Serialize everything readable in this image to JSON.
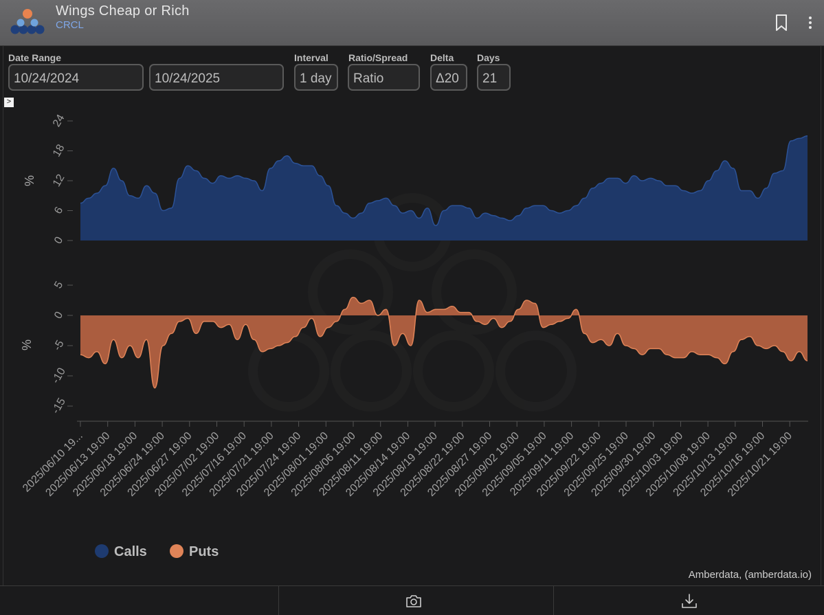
{
  "header": {
    "title": "Wings Cheap or Rich",
    "subtitle": "CRCL"
  },
  "controls": {
    "date_range_label": "Date Range",
    "start_date": "10/24/2024",
    "end_date": "10/24/2025",
    "interval_label": "Interval",
    "interval_value": "1 day",
    "ratio_label": "Ratio/Spread",
    "ratio_value": "Ratio",
    "delta_label": "Delta",
    "delta_value": "Δ20",
    "days_label": "Days",
    "days_value": "21"
  },
  "colors": {
    "calls": "#1e3b70",
    "calls_line": "#2c5296",
    "puts": "#b76342",
    "puts_line": "#e08458"
  },
  "chart_data": [
    {
      "type": "area",
      "name": "Calls",
      "ylabel": "%",
      "ylim": [
        0,
        24
      ],
      "yticks": [
        0,
        6,
        12,
        18,
        24
      ],
      "values": [
        7.5,
        8.5,
        9.5,
        11,
        14.5,
        12,
        9,
        8.5,
        11,
        9.5,
        6,
        6.5,
        12.5,
        15,
        14,
        12.5,
        11.5,
        13,
        12.5,
        13,
        12.5,
        12,
        10,
        14.5,
        16,
        17,
        15.5,
        15,
        15,
        13,
        11,
        7,
        5.5,
        4.5,
        5.5,
        7.5,
        8,
        8.5,
        7,
        5.5,
        6,
        4.5,
        6.5,
        3,
        6,
        7,
        7,
        6.5,
        4.5,
        5.5,
        5,
        4.5,
        4,
        5,
        6.5,
        7,
        7,
        6,
        5.5,
        6,
        7,
        8.5,
        10.5,
        11.5,
        12.5,
        12.5,
        11.5,
        13,
        12,
        12.5,
        12,
        11,
        11,
        10,
        9.5,
        10,
        12,
        14,
        16,
        14.5,
        10,
        10,
        8.5,
        10.5,
        13.5,
        14,
        20,
        20.5,
        21
      ]
    },
    {
      "type": "area",
      "name": "Puts",
      "ylabel": "%",
      "ylim": [
        -15,
        5
      ],
      "yticks": [
        5,
        0,
        -5,
        -10,
        -15
      ],
      "values": [
        -6.5,
        -7,
        -6,
        -8,
        -4,
        -7,
        -5,
        -7,
        -4,
        -12,
        -5,
        -3,
        -1,
        -0.5,
        -3,
        -1,
        -1,
        -2,
        -1.5,
        -4,
        -1.5,
        -4,
        -6,
        -5.5,
        -5,
        -4.5,
        -3.5,
        -2,
        -0.5,
        -3.5,
        -2,
        -1,
        1,
        3,
        2,
        2.5,
        0,
        1,
        -5,
        -3,
        -5,
        2.5,
        0.5,
        1,
        1,
        1.5,
        0.5,
        0.5,
        -1,
        -1.5,
        -0.5,
        -2,
        -1,
        1,
        2.5,
        2,
        -2,
        -1.5,
        -1,
        -0.5,
        1,
        -3,
        -4.5,
        -4,
        -5,
        -3,
        -5,
        -5.5,
        -6.5,
        -5.5,
        -5.5,
        -6.5,
        -7,
        -7,
        -6,
        -6.5,
        -6.5,
        -7,
        -8,
        -6,
        -4,
        -3.5,
        -5,
        -5.5,
        -5,
        -6,
        -7.5,
        -6,
        -7.5
      ]
    }
  ],
  "x_tick_labels": [
    "2025/06/10 19...",
    "2025/06/13 19:00",
    "2025/06/18 19:00",
    "2025/06/24 19:00",
    "2025/06/27 19:00",
    "2025/07/02 19:00",
    "2025/07/16 19:00",
    "2025/07/21 19:00",
    "2025/07/24 19:00",
    "2025/08/01 19:00",
    "2025/08/06 19:00",
    "2025/08/11 19:00",
    "2025/08/14 19:00",
    "2025/08/19 19:00",
    "2025/08/22 19:00",
    "2025/08/27 19:00",
    "2025/09/02 19:00",
    "2025/09/05 19:00",
    "2025/09/11 19:00",
    "2025/09/22 19:00",
    "2025/09/25 19:00",
    "2025/09/30 19:00",
    "2025/10/03 19:00",
    "2025/10/08 19:00",
    "2025/10/13 19:00",
    "2025/10/16 19:00",
    "2025/10/21 19:00"
  ],
  "legend": {
    "calls_label": "Calls",
    "puts_label": "Puts"
  },
  "credit": "Amberdata, (amberdata.io)"
}
